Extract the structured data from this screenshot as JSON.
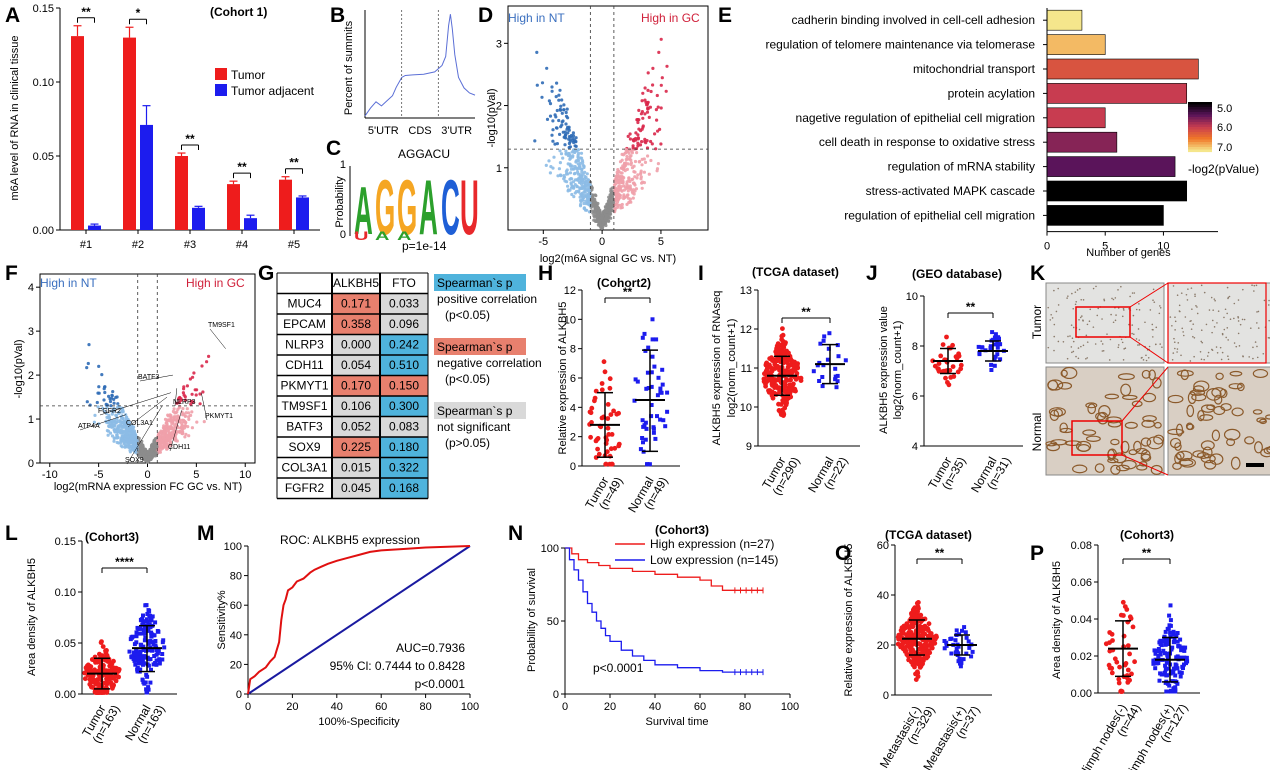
{
  "colors": {
    "red": "#ee1c1c",
    "blue": "#1c1cee",
    "pos": "#e8806e",
    "neg": "#4fb3dc",
    "ns": "#d9d9d9",
    "ptext": "#e02020",
    "up": "#e02040",
    "down": "#3070c0",
    "notsig": "#8c8c8c"
  },
  "panels": {
    "A": {
      "letter": "A",
      "title": "(Cohort 1)",
      "ylabel": "m6A level of RNA in clinical tissue",
      "legend": [
        "Tumor",
        "Tumor adjacent"
      ],
      "sig": [
        "**",
        "*",
        "**",
        "**",
        "**"
      ]
    },
    "B": {
      "letter": "B",
      "ylabel": "Percent of summits",
      "xticks": [
        "5'UTR",
        "CDS",
        "3'UTR"
      ]
    },
    "C": {
      "letter": "C",
      "title": "AGGACU",
      "ylabel": "Probability",
      "yticks": [
        "0",
        "1"
      ],
      "pval": "p=1e-14",
      "logo_letters": [
        "A",
        "G",
        "G",
        "A",
        "C",
        "U"
      ]
    },
    "D": {
      "letter": "D",
      "left_label": "High in NT",
      "right_label": "High in GC",
      "xlabel": "log2(m6A signal  GC vs. NT)",
      "ylabel": "-log10(pVal)"
    },
    "E": {
      "letter": "E",
      "xlabel": "Number of genes",
      "colorbar_label": "-log2(pValue)",
      "colorbar_ticks": [
        "5.0",
        "6.0",
        "7.0"
      ],
      "terms": [
        "cadherin binding involved in cell-cell adhesion",
        "regulation of telomere maintenance via telomerase",
        "mitochondrial transport",
        "protein acylation",
        "nagetive regulation of epithelial cell migration",
        "cell death in response to oxidative stress",
        "regulation of mRNA stability",
        "stress-activated MAPK cascade",
        "regulation of epithelial cell migration"
      ],
      "term_red": [
        true,
        false,
        false,
        false,
        true,
        false,
        false,
        false,
        true
      ]
    },
    "F": {
      "letter": "F",
      "left_label": "High in NT",
      "right_label": "High in GC",
      "xlabel": "log2(mRNA expression FC GC vs. NT)",
      "ylabel": "-log10(pVal)",
      "genes": [
        "TM9SF1",
        "BATF3",
        "FGFR2",
        "NLRP3",
        "ATP4A",
        "COL3A1",
        "PKMYT1",
        "SOX9",
        "CDH11"
      ]
    },
    "G": {
      "letter": "G",
      "headers": [
        "ALKBH5",
        "FTO"
      ],
      "rows": [
        {
          "gene": "MUC4",
          "alkbh5": "0.171",
          "fto": "0.033",
          "c1": "pos",
          "c2": "ns"
        },
        {
          "gene": "EPCAM",
          "alkbh5": "0.358",
          "fto": "0.096",
          "c1": "pos",
          "c2": "ns"
        },
        {
          "gene": "NLRP3",
          "alkbh5": "0.000",
          "fto": "0.242",
          "c1": "ns",
          "c2": "neg"
        },
        {
          "gene": "CDH11",
          "alkbh5": "0.054",
          "fto": "0.510",
          "c1": "ns",
          "c2": "neg"
        },
        {
          "gene": "PKMYT1",
          "alkbh5": "0.170",
          "fto": "0.150",
          "c1": "pos",
          "c2": "pos"
        },
        {
          "gene": "TM9SF1",
          "alkbh5": "0.106",
          "fto": "0.300",
          "c1": "ns",
          "c2": "neg"
        },
        {
          "gene": "BATF3",
          "alkbh5": "0.052",
          "fto": "0.083",
          "c1": "ns",
          "c2": "ns"
        },
        {
          "gene": "SOX9",
          "alkbh5": "0.225",
          "fto": "0.180",
          "c1": "pos",
          "c2": "neg"
        },
        {
          "gene": "COL3A1",
          "alkbh5": "0.015",
          "fto": "0.322",
          "c1": "ns",
          "c2": "neg"
        },
        {
          "gene": "FGFR2",
          "alkbh5": "0.045",
          "fto": "0.168",
          "c1": "ns",
          "c2": "neg"
        }
      ],
      "legend": [
        {
          "head": "Spearman`s p",
          "l1": "positive correlation",
          "l2": "(p<0.05)",
          "col": "neg"
        },
        {
          "head": "Spearman`s p",
          "l1": "negative correlation",
          "l2": "(p<0.05)",
          "col": "pos"
        },
        {
          "head": "Spearman`s p",
          "l1": "not significant",
          "l2": "(p>0.05)",
          "col": "ns"
        }
      ]
    },
    "H": {
      "letter": "H",
      "title": "(Cohort2)",
      "ylabel": "Relative expression of ALKBH5",
      "sig": "**",
      "groups": [
        "Tumor",
        "Normal"
      ],
      "ns": [
        "(n=49)",
        "(n=49)"
      ]
    },
    "I": {
      "letter": "I",
      "title": "(TCGA dataset)",
      "ylabel1": "ALKBH5 expression of RNAseq",
      "ylabel2": "log2(norm_count+1)",
      "sig": "**",
      "groups": [
        "Tumor",
        "Normal"
      ],
      "ns": [
        "(n=290)",
        "(n=22)"
      ]
    },
    "J": {
      "letter": "J",
      "title": "(GEO database)",
      "ylabel1": "ALKBH5 expression value",
      "ylabel2": "log2(norm_count+1)",
      "sig": "**",
      "groups": [
        "Tumor",
        "Normal"
      ],
      "ns": [
        "(n=35)",
        "(n=31)"
      ]
    },
    "K": {
      "letter": "K",
      "rows": [
        "Tumor",
        "Normal"
      ]
    },
    "L": {
      "letter": "L",
      "title": "(Cohort3)",
      "ylabel": "Area density of ALKBH5",
      "sig": "****",
      "groups": [
        "Tumor",
        "Normal"
      ],
      "ns": [
        "(n=163)",
        "(n=163)"
      ]
    },
    "M": {
      "letter": "M",
      "title": "ROC: ALKBH5 expression",
      "xlabel": "100%-Specificity",
      "ylabel": "Sensitivity%",
      "auc": "AUC=0.7936",
      "ci": "95% Cl: 0.7444 to 0.8428",
      "p": "p<0.0001"
    },
    "N": {
      "letter": "N",
      "title": "(Cohort3)",
      "xlabel": "Survival time",
      "ylabel": "Probability of survival",
      "legend": [
        "High expression (n=27)",
        "Low expression (n=145)"
      ],
      "p": "p<0.0001"
    },
    "O": {
      "letter": "O",
      "title": "(TCGA dataset)",
      "ylabel": "Relative expression of ALKBH5",
      "sig": "**",
      "groups": [
        "Metastasis(-)",
        "Metastasis(+)"
      ],
      "ns": [
        "(n=329)",
        "(n=37)"
      ]
    },
    "P": {
      "letter": "P",
      "title": "(Cohort3)",
      "ylabel": "Area density of ALKBH5",
      "sig": "**",
      "groups": [
        "limph nodes(-)",
        "limph nodes(+)"
      ],
      "ns": [
        "(n=44)",
        "(n=127)"
      ]
    }
  },
  "chart_data": [
    {
      "panel": "A",
      "type": "bar",
      "categories": [
        "#1",
        "#2",
        "#3",
        "#4",
        "#5"
      ],
      "series": [
        {
          "name": "Tumor",
          "values": [
            0.131,
            0.13,
            0.05,
            0.031,
            0.034
          ],
          "errors": [
            0.007,
            0.007,
            0.002,
            0.002,
            0.002
          ]
        },
        {
          "name": "Tumor adjacent",
          "values": [
            0.003,
            0.071,
            0.015,
            0.008,
            0.022
          ],
          "errors": [
            0.001,
            0.013,
            0.001,
            0.002,
            0.001
          ]
        }
      ],
      "ylabel": "m6A level of RNA in clinical tissue",
      "ylim": [
        0,
        0.15
      ],
      "yticks": [
        0,
        0.05,
        0.1,
        0.15
      ]
    },
    {
      "panel": "B",
      "type": "line",
      "xlim": [
        0,
        3
      ],
      "x": [
        0,
        0.15,
        0.3,
        0.45,
        0.6,
        0.75,
        0.85,
        1.0,
        1.1,
        1.3,
        1.6,
        1.9,
        2.1,
        2.2,
        2.28,
        2.33,
        2.38,
        2.45,
        2.55,
        2.7,
        2.85,
        3.0
      ],
      "y": [
        0.02,
        0.1,
        0.15,
        0.12,
        0.18,
        0.22,
        0.3,
        0.38,
        0.42,
        0.42,
        0.43,
        0.45,
        0.5,
        0.6,
        0.88,
        1.0,
        0.85,
        0.6,
        0.4,
        0.3,
        0.25,
        0.22
      ],
      "xticks": [
        "5'UTR",
        "CDS",
        "3'UTR"
      ]
    },
    {
      "panel": "D",
      "type": "scatter",
      "xlim": [
        -8,
        9
      ],
      "ylim": [
        0,
        3.6
      ],
      "xticks": [
        -5,
        0,
        5
      ],
      "yticks": [
        1,
        2,
        3
      ],
      "thresholds": {
        "x": [
          -1,
          1
        ],
        "y": 1.3
      }
    },
    {
      "panel": "E",
      "type": "bar",
      "orientation": "horizontal",
      "categories": [
        "cadherin binding involved in cell-cell adhesion",
        "regulation of telomere maintenance via telomerase",
        "mitochondrial transport",
        "protein acylation",
        "nagetive regulation of epithelial cell migration",
        "cell death in response to oxidative stress",
        "regulation of mRNA stability",
        "stress-activated MAPK cascade",
        "regulation of epithelial cell migration"
      ],
      "values": [
        3,
        5,
        13,
        12,
        5,
        6,
        11,
        12,
        10
      ],
      "color_values": [
        7.0,
        6.8,
        6.2,
        6.0,
        6.0,
        5.7,
        5.5,
        5.0,
        5.0
      ],
      "xlabel": "Number of genes",
      "xlim": [
        0,
        14
      ],
      "xticks": [
        0,
        5,
        10
      ]
    },
    {
      "panel": "F",
      "type": "scatter",
      "xlim": [
        -11,
        11
      ],
      "ylim": [
        0,
        4.3
      ],
      "xticks": [
        -10,
        -5,
        0,
        5,
        10
      ],
      "yticks": [
        0,
        1,
        2,
        3,
        4
      ],
      "thresholds": {
        "x": [
          -1,
          1
        ],
        "y": 1.3
      }
    },
    {
      "panel": "H",
      "type": "scatter",
      "categories": [
        "Tumor",
        "Normal"
      ],
      "mean": [
        2.8,
        4.5
      ],
      "sd_low": [
        0.6,
        1.0
      ],
      "sd_high": [
        5.0,
        7.9
      ],
      "n": [
        49,
        49
      ],
      "ylim": [
        0,
        12
      ],
      "yticks": [
        0,
        2,
        4,
        6,
        8,
        10,
        12
      ]
    },
    {
      "panel": "I",
      "type": "scatter",
      "categories": [
        "Tumor",
        "Normal"
      ],
      "mean": [
        10.8,
        11.1
      ],
      "sd_low": [
        10.3,
        10.6
      ],
      "sd_high": [
        11.3,
        11.6
      ],
      "n": [
        290,
        22
      ],
      "ylim": [
        9,
        13
      ],
      "yticks": [
        9,
        10,
        11,
        12,
        13
      ]
    },
    {
      "panel": "J",
      "type": "scatter",
      "categories": [
        "Tumor",
        "Normal"
      ],
      "mean": [
        7.4,
        7.8
      ],
      "sd_low": [
        6.9,
        7.4
      ],
      "sd_high": [
        7.9,
        8.2
      ],
      "n": [
        35,
        31
      ],
      "ylim": [
        4,
        10
      ],
      "yticks": [
        4,
        6,
        8,
        10
      ]
    },
    {
      "panel": "L",
      "type": "scatter",
      "categories": [
        "Tumor",
        "Normal"
      ],
      "mean": [
        0.02,
        0.045
      ],
      "sd_low": [
        0.005,
        0.022
      ],
      "sd_high": [
        0.035,
        0.067
      ],
      "n": [
        163,
        163
      ],
      "ylim": [
        0,
        0.15
      ],
      "yticks": [
        0,
        0.05,
        0.1,
        0.15
      ]
    },
    {
      "panel": "M",
      "type": "line",
      "xlim": [
        0,
        100
      ],
      "ylim": [
        0,
        100
      ],
      "x": [
        0,
        1,
        3,
        5,
        8,
        10,
        12,
        14,
        15,
        16,
        17,
        18,
        20,
        22,
        25,
        28,
        30,
        33,
        36,
        40,
        45,
        50,
        55,
        60,
        70,
        80,
        90,
        100
      ],
      "y": [
        0,
        10,
        12,
        15,
        18,
        22,
        25,
        35,
        50,
        60,
        64,
        70,
        72,
        76,
        78,
        82,
        84,
        86,
        88,
        90,
        92,
        94,
        96,
        97,
        98,
        99,
        99.5,
        100
      ],
      "xticks": [
        0,
        20,
        40,
        60,
        80,
        100
      ],
      "yticks": [
        0,
        20,
        40,
        60,
        80,
        100
      ]
    },
    {
      "panel": "N",
      "type": "line",
      "xlim": [
        0,
        100
      ],
      "ylim": [
        0,
        100
      ],
      "series": [
        {
          "name": "High expression (n=27)",
          "x": [
            0,
            3,
            6,
            10,
            15,
            20,
            30,
            40,
            50,
            60,
            65,
            70,
            80,
            88
          ],
          "y": [
            100,
            96,
            92,
            90,
            88,
            86,
            84,
            82,
            80,
            78,
            74,
            71,
            71,
            71
          ]
        },
        {
          "name": "Low expression (n=145)",
          "x": [
            0,
            2,
            4,
            6,
            8,
            10,
            12,
            14,
            16,
            18,
            20,
            25,
            30,
            35,
            40,
            50,
            60,
            70,
            80,
            88
          ],
          "y": [
            100,
            92,
            85,
            78,
            70,
            62,
            56,
            50,
            45,
            40,
            36,
            30,
            26,
            23,
            20,
            18,
            16,
            15,
            15,
            15
          ]
        }
      ],
      "xticks": [
        0,
        20,
        40,
        60,
        80,
        100
      ],
      "yticks": [
        0,
        50,
        100
      ]
    },
    {
      "panel": "O",
      "type": "scatter",
      "categories": [
        "Metastasis(-)",
        "Metastasis(+)"
      ],
      "mean": [
        22.5,
        20
      ],
      "sd_low": [
        16,
        16
      ],
      "sd_high": [
        30,
        24
      ],
      "n": [
        329,
        37
      ],
      "ylim": [
        0,
        60
      ],
      "yticks": [
        0,
        20,
        40,
        60
      ]
    },
    {
      "panel": "P",
      "type": "scatter",
      "categories": [
        "limph nodes(-)",
        "limph nodes(+)"
      ],
      "mean": [
        0.024,
        0.018
      ],
      "sd_low": [
        0.009,
        0.006
      ],
      "sd_high": [
        0.039,
        0.03
      ],
      "n": [
        44,
        127
      ],
      "ylim": [
        0,
        0.08
      ],
      "yticks": [
        0,
        0.02,
        0.04,
        0.06,
        0.08
      ]
    }
  ]
}
